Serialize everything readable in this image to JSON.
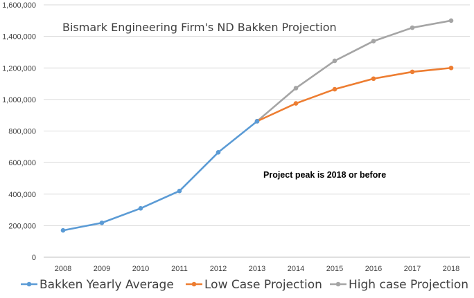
{
  "chart_data": {
    "type": "line",
    "title": "Bismark Engineering Firm's ND Bakken Projection",
    "annotation": "Project peak is 2018  or before",
    "categories": [
      "2008",
      "2009",
      "2010",
      "2011",
      "2012",
      "2013",
      "2014",
      "2015",
      "2016",
      "2017",
      "2018"
    ],
    "ylim": [
      0,
      1600000
    ],
    "yticks": [
      "0",
      "200,000",
      "400,000",
      "600,000",
      "800,000",
      "1,000,000",
      "1,200,000",
      "1,400,000",
      "1,600,000"
    ],
    "grid": true,
    "legend_position": "bottom",
    "series": [
      {
        "name": "Bakken Yearly Average",
        "color": "#5B9BD5",
        "values": [
          170000,
          218000,
          310000,
          420000,
          665000,
          862000,
          null,
          null,
          null,
          null,
          null
        ]
      },
      {
        "name": "Low Case Projection",
        "color": "#ED7D31",
        "values": [
          null,
          null,
          null,
          null,
          null,
          862000,
          975000,
          1065000,
          1132000,
          1175000,
          1200000
        ]
      },
      {
        "name": "High case Projection",
        "color": "#A5A5A5",
        "values": [
          null,
          null,
          null,
          null,
          null,
          862000,
          1072000,
          1245000,
          1370000,
          1455000,
          1500000
        ]
      }
    ]
  }
}
